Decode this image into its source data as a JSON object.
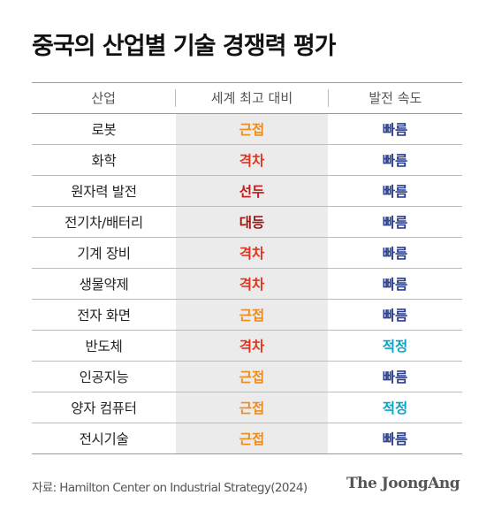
{
  "title": "중국의 산업별 기술 경쟁력 평가",
  "table": {
    "headers": {
      "industry": "산업",
      "level": "세계 최고 대비",
      "speed": "발전 속도"
    },
    "rows": [
      {
        "industry": "로봇",
        "level": "근접",
        "speed": "빠름"
      },
      {
        "industry": "화학",
        "level": "격차",
        "speed": "빠름"
      },
      {
        "industry": "원자력 발전",
        "level": "선두",
        "speed": "빠름"
      },
      {
        "industry": "전기차/배터리",
        "level": "대등",
        "speed": "빠름"
      },
      {
        "industry": "기계 장비",
        "level": "격차",
        "speed": "빠름"
      },
      {
        "industry": "생물약제",
        "level": "격차",
        "speed": "빠름"
      },
      {
        "industry": "전자 화면",
        "level": "근접",
        "speed": "빠름"
      },
      {
        "industry": "반도체",
        "level": "격차",
        "speed": "적정"
      },
      {
        "industry": "인공지능",
        "level": "근접",
        "speed": "빠름"
      },
      {
        "industry": "양자 컴퓨터",
        "level": "근접",
        "speed": "적정"
      },
      {
        "industry": "전시기술",
        "level": "근접",
        "speed": "빠름"
      }
    ]
  },
  "colors": {
    "근접": "#f08c1c",
    "격차": "#e0351f",
    "선두": "#c41a1a",
    "대등": "#9c1515",
    "빠름": "#2b3f8f",
    "적정": "#0aa3c2"
  },
  "source": "자료: Hamilton Center on Industrial Strategy(2024)",
  "brand": "The JoongAng"
}
